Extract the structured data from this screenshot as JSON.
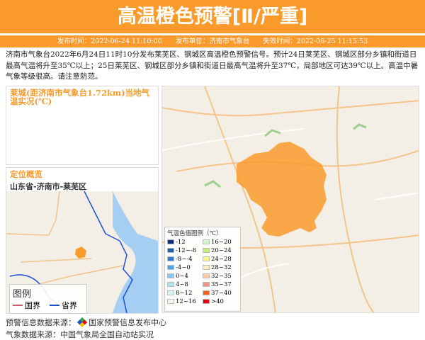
{
  "header": {
    "title": "高温橙色预警[Ⅱ/严重]",
    "issue_time": "发布时间：2022-06-24 11:10:00",
    "issuer": "发布单位：济南市气象台",
    "expire_time": "失效时间：2022-06-25 11:15:53"
  },
  "description": "济南市气象台2022年6月24日11时10分发布莱芜区、钢城区高温橙色预警信号。预计24日莱芜区、钢城区部分乡镇和街道日最高气温将升至35℃以上；25日莱芜区、钢城区部分乡镇和街道日最高气温将升至37℃，局部地区可达39℃以上。高温中暑气象等级很高。请注意防范。",
  "temp_panel": {
    "title": "莱城(距济南市气象台1.72km)当地气温实况(℃)"
  },
  "location_panel": {
    "title": "定位概览",
    "location": "山东省-济南市-莱芜区"
  },
  "map_legend": {
    "title": "图例",
    "country_border": "国界",
    "province_border": "省界",
    "country_color": "#c06070",
    "province_color": "#1a4fd6"
  },
  "temp_legend": {
    "title": "气温色值图例（℃）",
    "items": [
      {
        "label": "-12",
        "color": "#0a2f80"
      },
      {
        "label": "16~20",
        "color": "#d4f7cf"
      },
      {
        "label": "-12~-8",
        "color": "#1e5cb0"
      },
      {
        "label": "20~24",
        "color": "#c6f07c"
      },
      {
        "label": "-8~-4",
        "color": "#2f7fd8"
      },
      {
        "label": "24~28",
        "color": "#fbfa8c"
      },
      {
        "label": "-4~0",
        "color": "#47a3ee"
      },
      {
        "label": "28~32",
        "color": "#fdeec4"
      },
      {
        "label": "0~4",
        "color": "#84c9f5"
      },
      {
        "label": "32~35",
        "color": "#fdcda3"
      },
      {
        "label": "4~8",
        "color": "#b0e2f5"
      },
      {
        "label": "35~37",
        "color": "#f7948a"
      },
      {
        "label": "8~12",
        "color": "#d4f6fa"
      },
      {
        "label": "37~40",
        "color": "#f95f22"
      },
      {
        "label": "12~16",
        "color": "#eefae6"
      },
      {
        "label": ">40",
        "color": "#e60012"
      }
    ]
  },
  "warning_color": "#f99a2b",
  "footer": {
    "source1_label": "预警信息数据来源：",
    "source1_name": "国家预警信息发布中心",
    "source2": "气象数据来源：中国气象局全国自动站实况"
  }
}
